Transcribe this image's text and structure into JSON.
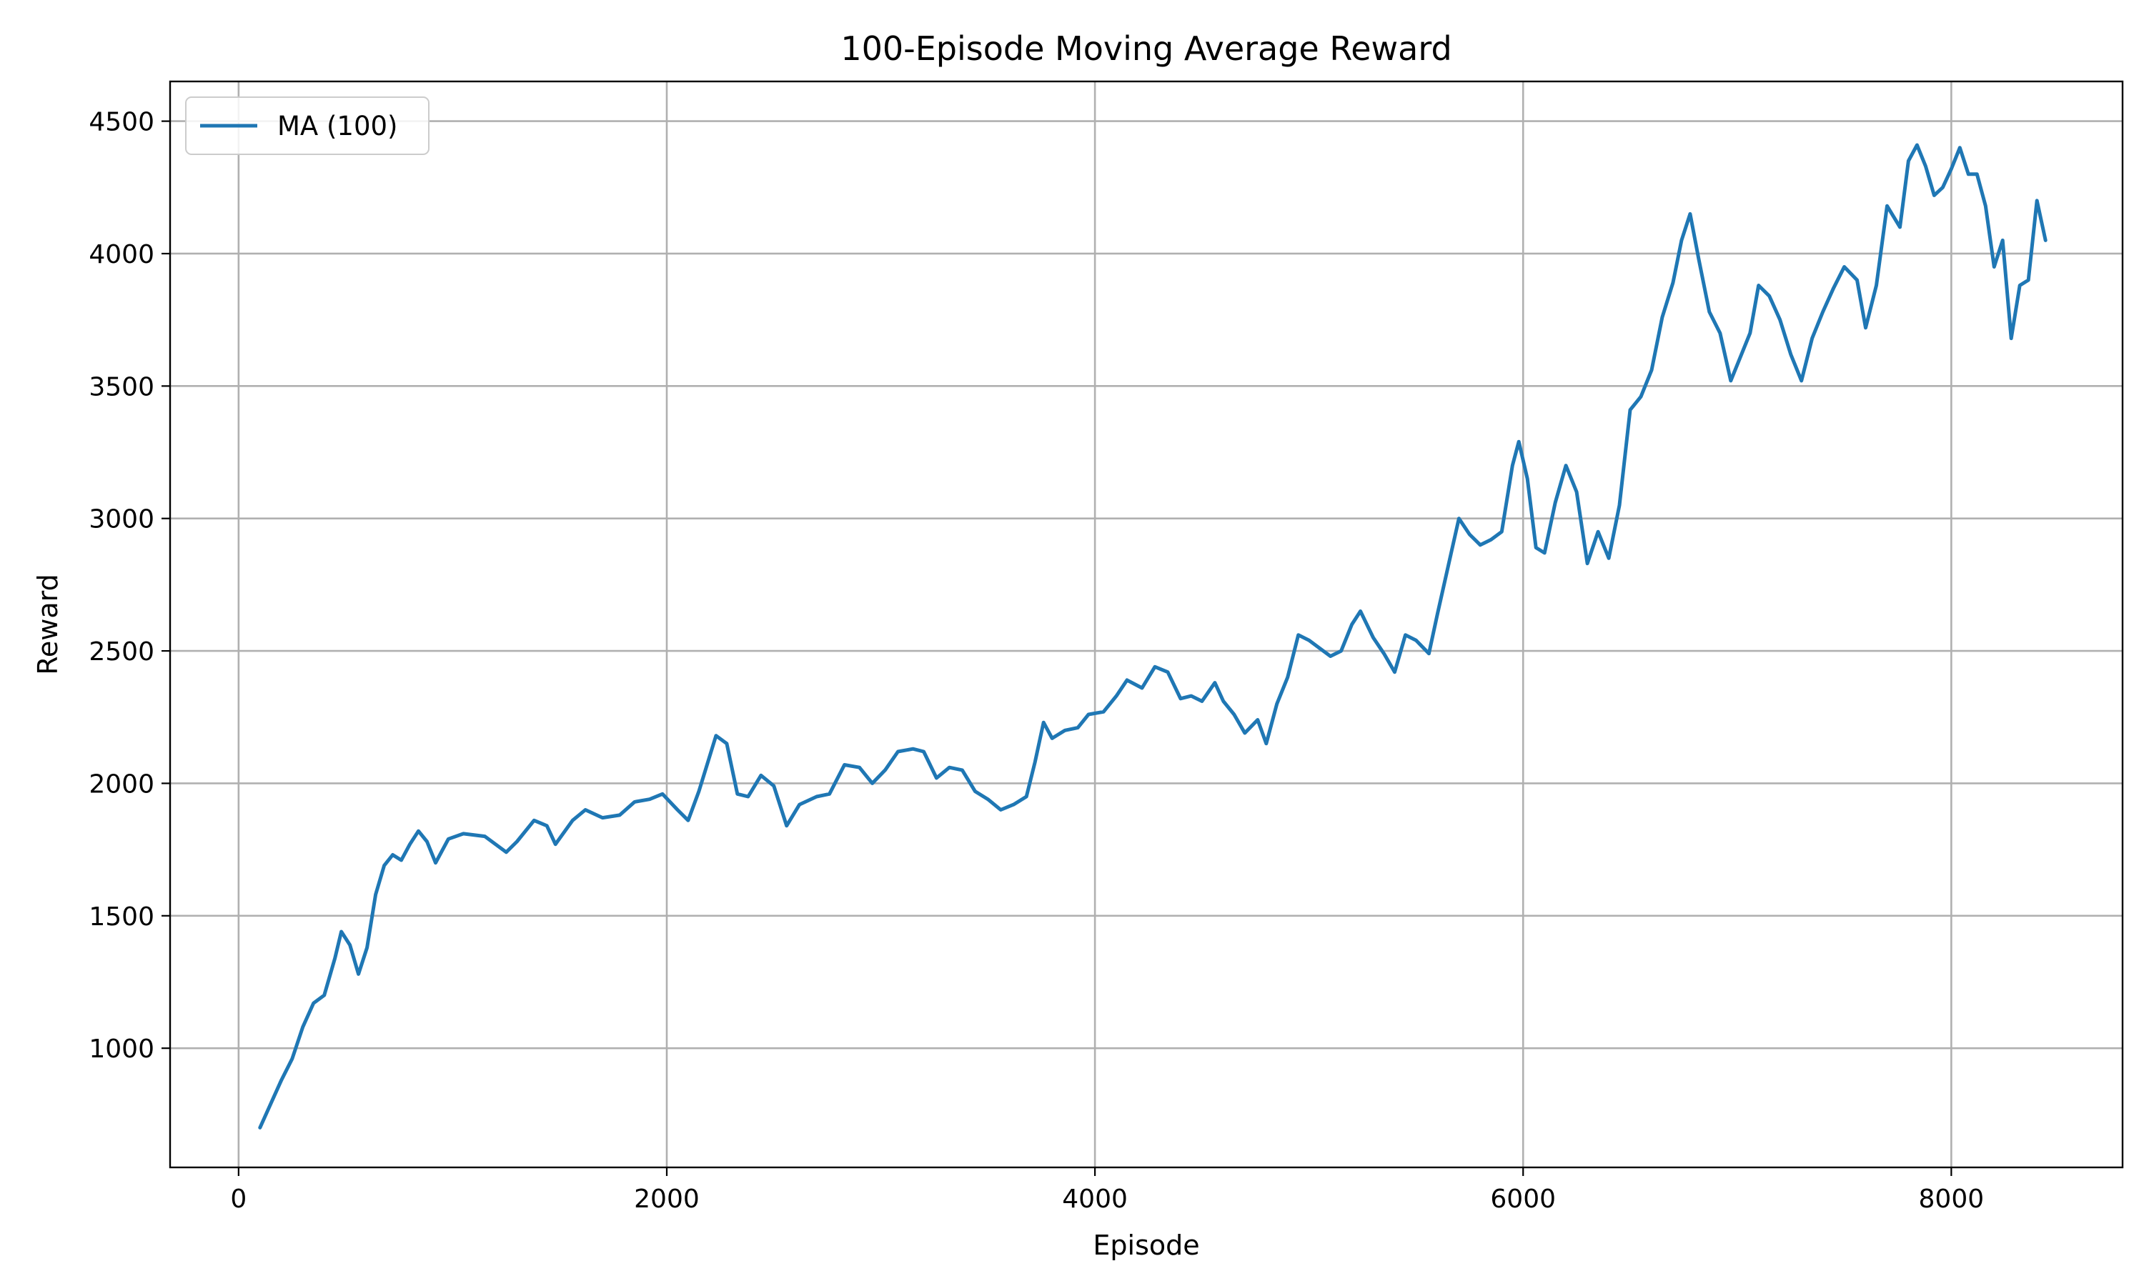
{
  "chart_data": {
    "type": "line",
    "title": "100-Episode Moving Average Reward",
    "xlabel": "Episode",
    "ylabel": "Reward",
    "xlim": [
      -320,
      8800
    ],
    "ylim": [
      550,
      4650
    ],
    "grid": true,
    "legend_position": "top-left",
    "x_ticks": [
      {
        "value": 0,
        "label": "0"
      },
      {
        "value": 2000,
        "label": "2000"
      },
      {
        "value": 4000,
        "label": "4000"
      },
      {
        "value": 6000,
        "label": "6000"
      },
      {
        "value": 8000,
        "label": "8000"
      }
    ],
    "y_ticks": [
      {
        "value": 1000,
        "label": "1000"
      },
      {
        "value": 1500,
        "label": "1500"
      },
      {
        "value": 2000,
        "label": "2000"
      },
      {
        "value": 2500,
        "label": "2500"
      },
      {
        "value": 3000,
        "label": "3000"
      },
      {
        "value": 3500,
        "label": "3500"
      },
      {
        "value": 4000,
        "label": "4000"
      },
      {
        "value": 4500,
        "label": "4500"
      }
    ],
    "series": [
      {
        "name": "MA (100)",
        "color": "#1f77b4",
        "points": [
          [
            100,
            700
          ],
          [
            150,
            790
          ],
          [
            200,
            880
          ],
          [
            250,
            960
          ],
          [
            300,
            1080
          ],
          [
            350,
            1170
          ],
          [
            400,
            1200
          ],
          [
            450,
            1340
          ],
          [
            480,
            1440
          ],
          [
            520,
            1390
          ],
          [
            560,
            1280
          ],
          [
            600,
            1380
          ],
          [
            640,
            1580
          ],
          [
            680,
            1690
          ],
          [
            720,
            1730
          ],
          [
            760,
            1710
          ],
          [
            800,
            1770
          ],
          [
            840,
            1820
          ],
          [
            880,
            1780
          ],
          [
            920,
            1700
          ],
          [
            980,
            1790
          ],
          [
            1050,
            1810
          ],
          [
            1150,
            1800
          ],
          [
            1250,
            1740
          ],
          [
            1300,
            1780
          ],
          [
            1380,
            1860
          ],
          [
            1440,
            1840
          ],
          [
            1480,
            1770
          ],
          [
            1560,
            1860
          ],
          [
            1620,
            1900
          ],
          [
            1700,
            1870
          ],
          [
            1780,
            1880
          ],
          [
            1850,
            1930
          ],
          [
            1920,
            1940
          ],
          [
            1980,
            1960
          ],
          [
            2050,
            1900
          ],
          [
            2100,
            1860
          ],
          [
            2150,
            1970
          ],
          [
            2230,
            2180
          ],
          [
            2280,
            2150
          ],
          [
            2330,
            1960
          ],
          [
            2380,
            1950
          ],
          [
            2440,
            2030
          ],
          [
            2500,
            1990
          ],
          [
            2560,
            1840
          ],
          [
            2620,
            1920
          ],
          [
            2700,
            1950
          ],
          [
            2760,
            1960
          ],
          [
            2830,
            2070
          ],
          [
            2900,
            2060
          ],
          [
            2960,
            2000
          ],
          [
            3020,
            2050
          ],
          [
            3080,
            2120
          ],
          [
            3150,
            2130
          ],
          [
            3200,
            2120
          ],
          [
            3260,
            2020
          ],
          [
            3320,
            2060
          ],
          [
            3380,
            2050
          ],
          [
            3440,
            1970
          ],
          [
            3500,
            1940
          ],
          [
            3560,
            1900
          ],
          [
            3620,
            1920
          ],
          [
            3680,
            1950
          ],
          [
            3720,
            2080
          ],
          [
            3760,
            2230
          ],
          [
            3800,
            2170
          ],
          [
            3860,
            2200
          ],
          [
            3920,
            2210
          ],
          [
            3970,
            2260
          ],
          [
            4040,
            2270
          ],
          [
            4100,
            2330
          ],
          [
            4150,
            2390
          ],
          [
            4220,
            2360
          ],
          [
            4280,
            2440
          ],
          [
            4340,
            2420
          ],
          [
            4400,
            2320
          ],
          [
            4450,
            2330
          ],
          [
            4500,
            2310
          ],
          [
            4560,
            2380
          ],
          [
            4600,
            2310
          ],
          [
            4650,
            2260
          ],
          [
            4700,
            2190
          ],
          [
            4760,
            2240
          ],
          [
            4800,
            2150
          ],
          [
            4850,
            2300
          ],
          [
            4900,
            2400
          ],
          [
            4950,
            2560
          ],
          [
            5000,
            2540
          ],
          [
            5050,
            2510
          ],
          [
            5100,
            2480
          ],
          [
            5150,
            2500
          ],
          [
            5200,
            2600
          ],
          [
            5240,
            2650
          ],
          [
            5300,
            2550
          ],
          [
            5350,
            2490
          ],
          [
            5400,
            2420
          ],
          [
            5450,
            2560
          ],
          [
            5500,
            2540
          ],
          [
            5560,
            2490
          ],
          [
            5600,
            2640
          ],
          [
            5650,
            2820
          ],
          [
            5700,
            3000
          ],
          [
            5750,
            2940
          ],
          [
            5800,
            2900
          ],
          [
            5850,
            2920
          ],
          [
            5900,
            2950
          ],
          [
            5950,
            3200
          ],
          [
            5980,
            3290
          ],
          [
            6020,
            3150
          ],
          [
            6060,
            2890
          ],
          [
            6100,
            2870
          ],
          [
            6150,
            3060
          ],
          [
            6200,
            3200
          ],
          [
            6250,
            3100
          ],
          [
            6300,
            2830
          ],
          [
            6350,
            2950
          ],
          [
            6400,
            2850
          ],
          [
            6450,
            3050
          ],
          [
            6500,
            3410
          ],
          [
            6550,
            3460
          ],
          [
            6600,
            3560
          ],
          [
            6650,
            3760
          ],
          [
            6700,
            3890
          ],
          [
            6740,
            4050
          ],
          [
            6780,
            4150
          ],
          [
            6820,
            3980
          ],
          [
            6870,
            3780
          ],
          [
            6920,
            3700
          ],
          [
            6970,
            3520
          ],
          [
            7000,
            3580
          ],
          [
            7060,
            3700
          ],
          [
            7100,
            3880
          ],
          [
            7150,
            3840
          ],
          [
            7200,
            3750
          ],
          [
            7250,
            3620
          ],
          [
            7300,
            3520
          ],
          [
            7350,
            3680
          ],
          [
            7400,
            3780
          ],
          [
            7450,
            3870
          ],
          [
            7500,
            3950
          ],
          [
            7560,
            3900
          ],
          [
            7600,
            3720
          ],
          [
            7650,
            3880
          ],
          [
            7700,
            4180
          ],
          [
            7760,
            4100
          ],
          [
            7800,
            4350
          ],
          [
            7840,
            4410
          ],
          [
            7880,
            4330
          ],
          [
            7920,
            4220
          ],
          [
            7960,
            4250
          ],
          [
            8000,
            4320
          ],
          [
            8040,
            4400
          ],
          [
            8080,
            4300
          ],
          [
            8120,
            4300
          ],
          [
            8160,
            4180
          ],
          [
            8200,
            3950
          ],
          [
            8240,
            4050
          ],
          [
            8280,
            3680
          ],
          [
            8320,
            3880
          ],
          [
            8360,
            3900
          ],
          [
            8400,
            4200
          ],
          [
            8440,
            4050
          ]
        ]
      }
    ]
  }
}
